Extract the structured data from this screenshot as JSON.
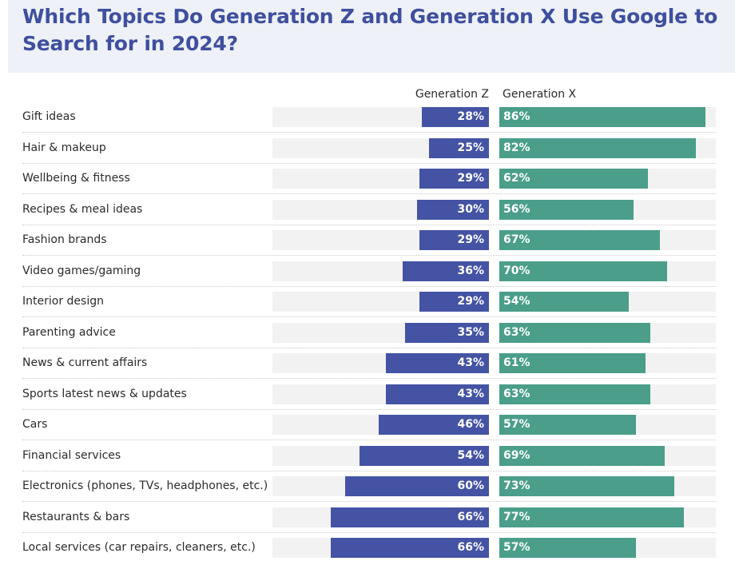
{
  "title": "Which Topics Do Generation Z and Generation X Use Google to Search for in 2024?",
  "colors": {
    "gen_z": "#4453a3",
    "gen_x": "#4a9e8a",
    "track": "#f2f2f2",
    "title": "#3f4f9f"
  },
  "chart_data": {
    "type": "bar",
    "orientation": "horizontal",
    "title": "Which Topics Do Generation Z and Generation X Use Google to Search for in 2024?",
    "unit": "%",
    "xlim": [
      0,
      100
    ],
    "categories": [
      "Gift ideas",
      "Hair & makeup",
      "Wellbeing & fitness",
      "Recipes & meal ideas",
      "Fashion brands",
      "Video games/gaming",
      "Interior design",
      "Parenting advice",
      "News & current affairs",
      "Sports latest news & updates",
      "Cars",
      "Financial services",
      "Electronics (phones, TVs, headphones, etc.)",
      "Restaurants & bars",
      "Local services (car repairs, cleaners, etc.)"
    ],
    "series": [
      {
        "name": "Generation Z",
        "values": [
          28,
          25,
          29,
          30,
          29,
          36,
          29,
          35,
          43,
          43,
          46,
          54,
          60,
          66,
          66
        ]
      },
      {
        "name": "Generation X",
        "values": [
          86,
          82,
          62,
          56,
          67,
          70,
          54,
          63,
          61,
          63,
          57,
          69,
          73,
          77,
          57
        ]
      }
    ]
  }
}
